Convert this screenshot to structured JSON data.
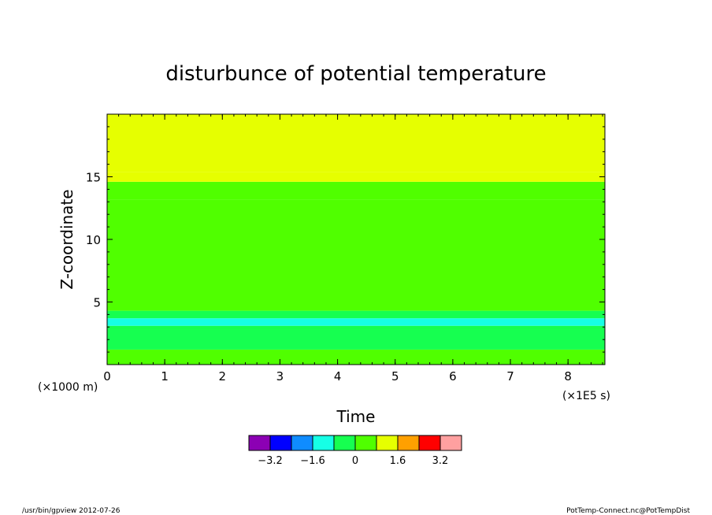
{
  "chart_data": {
    "type": "heatmap",
    "title": "disturbunce of potential temperature",
    "xlabel": "Time",
    "ylabel": "Z-coordinate",
    "x_unit": "(×1E5 s)",
    "y_unit": "(×1000 m)",
    "xlim": [
      0,
      8.64
    ],
    "ylim": [
      0,
      20
    ],
    "x_ticks": [
      0,
      1,
      2,
      3,
      4,
      5,
      6,
      7,
      8
    ],
    "y_ticks": [
      5,
      10,
      15
    ],
    "grid": false,
    "levels": [
      -4,
      -3.2,
      -2.4,
      -1.6,
      -0.8,
      0,
      0.8,
      1.6,
      2.4,
      3.2,
      4
    ],
    "colorbar_labels": [
      "-3.2",
      "-1.6",
      "0",
      "1.6",
      "3.2"
    ],
    "colorbar_colors": [
      "#8c00b4",
      "#0000ff",
      "#0f8cff",
      "#16ffe6",
      "#16ff50",
      "#50ff00",
      "#e6ff00",
      "#ffa000",
      "#ff0000",
      "#ffa0a0"
    ],
    "bands": [
      {
        "z_from": 0,
        "z_to": 1.2,
        "value": 0.0
      },
      {
        "z_from": 1.2,
        "z_to": 2.8,
        "value": -0.8
      },
      {
        "z_from": 2.8,
        "z_to": 3.1,
        "value": -0.8
      },
      {
        "z_from": 3.1,
        "z_to": 3.7,
        "value": -1.6
      },
      {
        "z_from": 3.7,
        "z_to": 4.3,
        "value": -0.8
      },
      {
        "z_from": 4.3,
        "z_to": 13.2,
        "value": 0.0
      },
      {
        "z_from": 13.2,
        "z_to": 14.6,
        "value": 0.4
      },
      {
        "z_from": 14.6,
        "z_to": 15.4,
        "value": 1.2
      },
      {
        "z_from": 15.4,
        "z_to": 20,
        "value": 0.8
      }
    ]
  },
  "footer": {
    "left": "/usr/bin/gpview  2012-07-26",
    "right": "PotTemp-Connect.nc@PotTempDist"
  }
}
